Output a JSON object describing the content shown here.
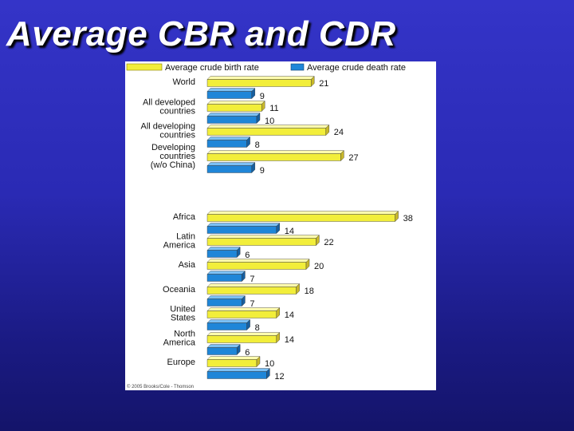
{
  "slide": {
    "title": "Average CBR and CDR"
  },
  "colors": {
    "birth_front": "#f2ee3a",
    "birth_top": "#fffcae",
    "birth_side": "#c8b82a",
    "death_front": "#1f86d8",
    "death_top": "#7cc0f4",
    "death_side": "#175fa0"
  },
  "chart_data": {
    "type": "bar",
    "orientation": "horizontal",
    "title": "",
    "xlabel": "",
    "ylabel": "",
    "xlim": [
      0,
      40
    ],
    "grid": false,
    "legend_position": "top",
    "categories": [
      "World",
      "All developed countries",
      "All developing countries",
      "Developing countries (w/o China)",
      "Africa",
      "Latin America",
      "Asia",
      "Oceania",
      "United States",
      "North America",
      "Europe"
    ],
    "category_lines": [
      [
        "World"
      ],
      [
        "All developed",
        "countries"
      ],
      [
        "All developing",
        "countries"
      ],
      [
        "Developing",
        "countries",
        "(w/o China)"
      ],
      [
        "Africa"
      ],
      [
        "Latin",
        "America"
      ],
      [
        "Asia"
      ],
      [
        "Oceania"
      ],
      [
        "United",
        "States"
      ],
      [
        "North",
        "America"
      ],
      [
        "Europe"
      ]
    ],
    "series": [
      {
        "name": "Average crude birth rate",
        "values": [
          21,
          11,
          24,
          27,
          38,
          22,
          20,
          18,
          14,
          14,
          10
        ]
      },
      {
        "name": "Average crude death rate",
        "values": [
          9,
          10,
          8,
          9,
          14,
          6,
          7,
          7,
          8,
          6,
          12
        ]
      }
    ],
    "credit": "© 2005 Brooks/Cole - Thomson"
  }
}
